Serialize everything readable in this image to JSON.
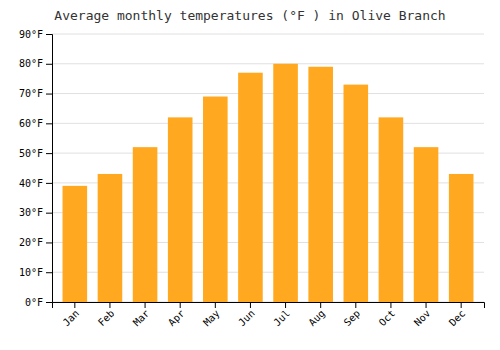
{
  "chart_data": {
    "type": "bar",
    "title": "Average monthly temperatures (°F ) in Olive Branch",
    "categories": [
      "Jan",
      "Feb",
      "Mar",
      "Apr",
      "May",
      "Jun",
      "Jul",
      "Aug",
      "Sep",
      "Oct",
      "Nov",
      "Dec"
    ],
    "values": [
      39,
      43,
      52,
      62,
      69,
      77,
      80,
      79,
      73,
      62,
      52,
      43
    ],
    "color": "#FFA820",
    "ylim": [
      0,
      90
    ],
    "yticks": [
      {
        "value": 0,
        "label": "0°F"
      },
      {
        "value": 10,
        "label": "10°F"
      },
      {
        "value": 20,
        "label": "20°F"
      },
      {
        "value": 30,
        "label": "30°F"
      },
      {
        "value": 40,
        "label": "40°F"
      },
      {
        "value": 50,
        "label": "50°F"
      },
      {
        "value": 60,
        "label": "60°F"
      },
      {
        "value": 70,
        "label": "70°F"
      },
      {
        "value": 80,
        "label": "80°F"
      },
      {
        "value": 90,
        "label": "90°F"
      }
    ],
    "grid": true
  }
}
